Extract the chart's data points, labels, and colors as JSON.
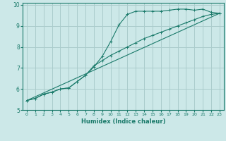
{
  "xlabel": "Humidex (Indice chaleur)",
  "ylabel": "",
  "xlim": [
    -0.5,
    23.5
  ],
  "ylim": [
    5,
    10.1
  ],
  "yticks": [
    5,
    6,
    7,
    8,
    9,
    10
  ],
  "xticks": [
    0,
    1,
    2,
    3,
    4,
    5,
    6,
    7,
    8,
    9,
    10,
    11,
    12,
    13,
    14,
    15,
    16,
    17,
    18,
    19,
    20,
    21,
    22,
    23
  ],
  "bg_color": "#cce8e8",
  "grid_color": "#aacccc",
  "line_color": "#1a7a6a",
  "line1_x": [
    0,
    1,
    2,
    3,
    4,
    5,
    6,
    7,
    8,
    9,
    10,
    11,
    12,
    13,
    14,
    15,
    16,
    17,
    18,
    19,
    20,
    21,
    22,
    23
  ],
  "line1_y": [
    5.45,
    5.55,
    5.75,
    5.85,
    6.0,
    6.05,
    6.35,
    6.65,
    7.05,
    7.55,
    8.25,
    9.05,
    9.55,
    9.7,
    9.7,
    9.7,
    9.7,
    9.75,
    9.8,
    9.8,
    9.75,
    9.8,
    9.65,
    9.6
  ],
  "line2_x": [
    0,
    1,
    2,
    3,
    4,
    5,
    6,
    7,
    8,
    9,
    10,
    11,
    12,
    13,
    14,
    15,
    16,
    17,
    18,
    19,
    20,
    21,
    22,
    23
  ],
  "line2_y": [
    5.45,
    5.55,
    5.75,
    5.85,
    6.0,
    6.05,
    6.35,
    6.65,
    7.1,
    7.35,
    7.6,
    7.8,
    8.0,
    8.2,
    8.4,
    8.55,
    8.7,
    8.85,
    9.0,
    9.15,
    9.3,
    9.45,
    9.55,
    9.6
  ],
  "line3_x": [
    0,
    23
  ],
  "line3_y": [
    5.45,
    9.6
  ]
}
